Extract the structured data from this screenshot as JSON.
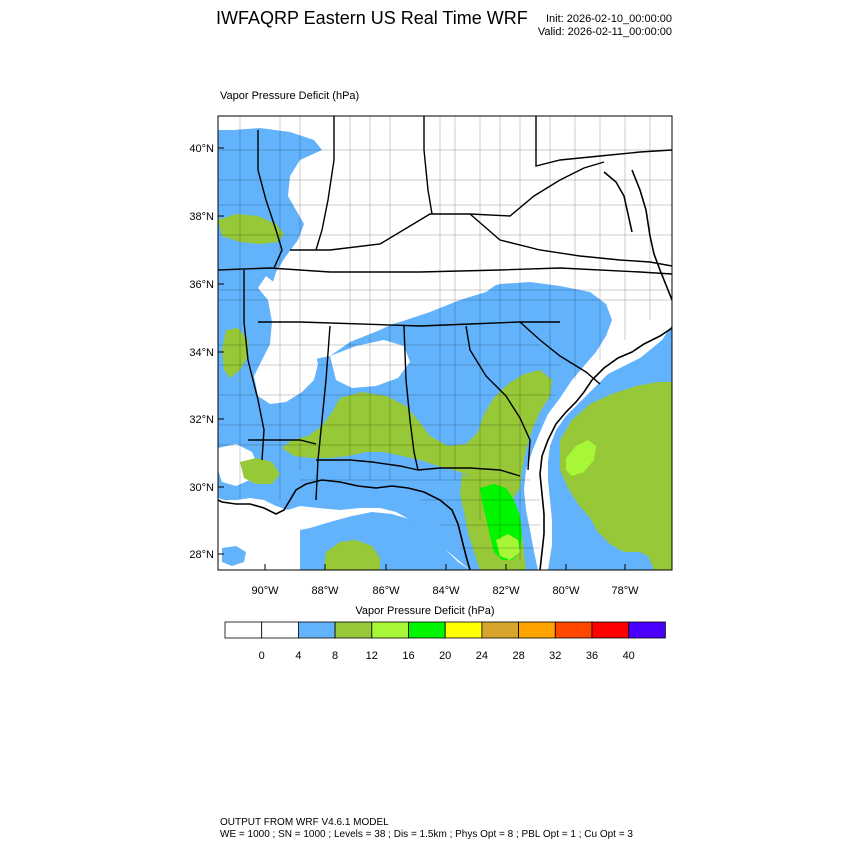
{
  "header": {
    "title": "IWFAQRP Eastern US Real Time WRF",
    "init": "Init: 2026-02-10_00:00:00",
    "valid": "Valid: 2026-02-11_00:00:00"
  },
  "plot": {
    "field_label": "Vapor Pressure Deficit   (hPa)",
    "lat_labels": [
      "40°N",
      "38°N",
      "36°N",
      "34°N",
      "32°N",
      "30°N",
      "28°N"
    ],
    "lon_labels": [
      "90°W",
      "88°W",
      "86°W",
      "84°W",
      "82°W",
      "80°W",
      "78°W"
    ]
  },
  "colorbar": {
    "title": "Vapor Pressure Deficit  (hPa)",
    "colors": [
      "#ffffff",
      "#ffffff",
      "#62b3fb",
      "#97c837",
      "#a7f637",
      "#00f500",
      "#ffff00",
      "#d8a52c",
      "#ffa300",
      "#ff4700",
      "#ff0000",
      "#4b00ff"
    ],
    "ticks": [
      "0",
      "4",
      "8",
      "12",
      "16",
      "20",
      "24",
      "28",
      "32",
      "36",
      "40"
    ]
  },
  "footer": {
    "line1": "OUTPUT FROM WRF V4.6.1 MODEL",
    "line2": "WE = 1000 ; SN = 1000 ; Levels = 38 ; Dis = 1.5km ; Phys Opt = 8 ; PBL Opt = 1 ; Cu Opt = 3"
  }
}
